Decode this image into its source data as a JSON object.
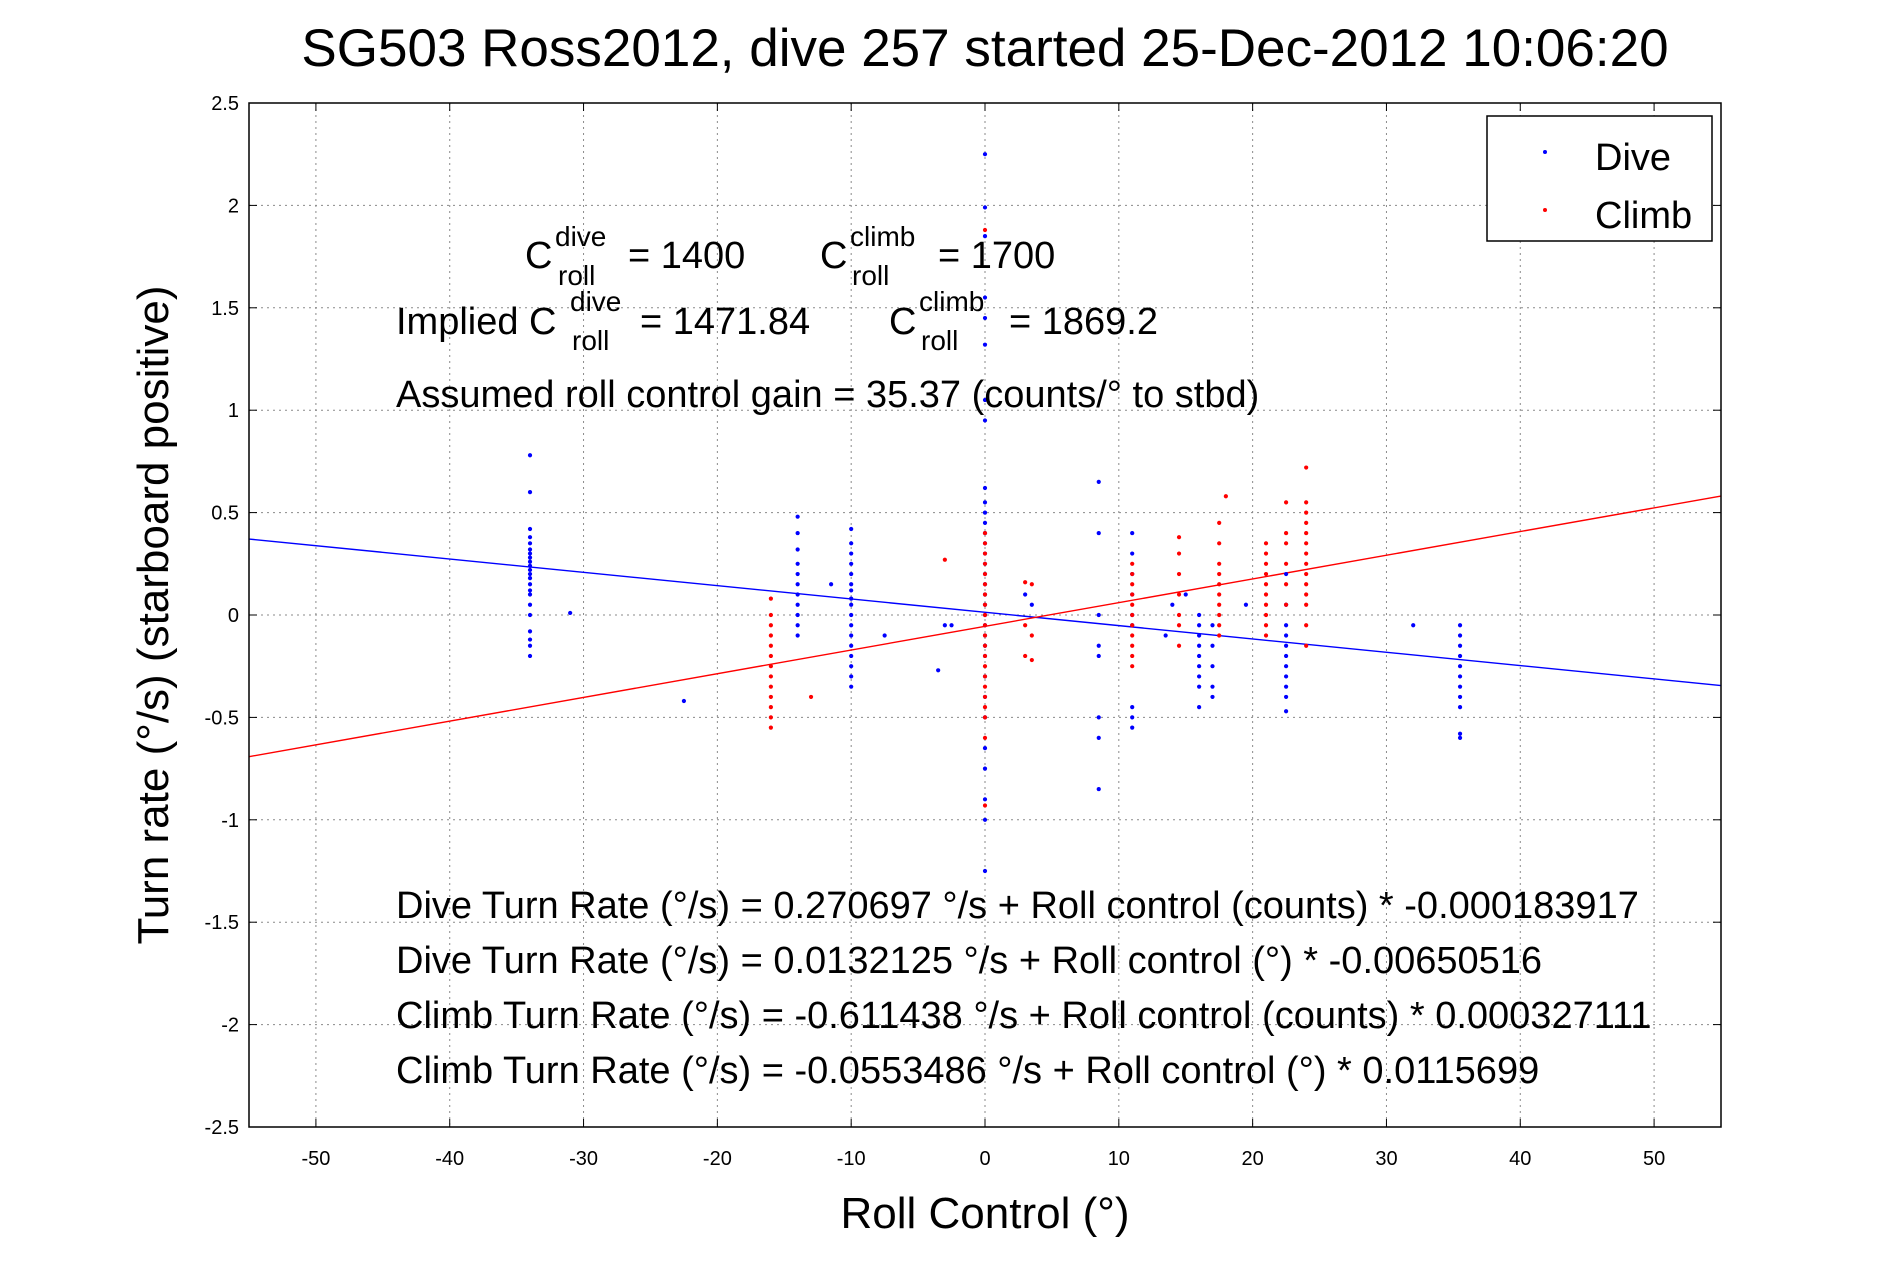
{
  "chart_data": {
    "type": "scatter",
    "title": "SG503 Ross2012, dive 257 started 25-Dec-2012 10:06:20",
    "xlabel": "Roll Control (°)",
    "ylabel": "Turn rate (°/s) (starboard positive)",
    "xlim": [
      -55,
      55
    ],
    "ylim": [
      -2.5,
      2.5
    ],
    "xticks": [
      -50,
      -40,
      -30,
      -20,
      -10,
      0,
      10,
      20,
      30,
      40,
      50
    ],
    "xtick_labels": [
      "-50",
      "-40",
      "-30",
      "-20",
      "-10",
      "0",
      "10",
      "20",
      "30",
      "40",
      "50"
    ],
    "yticks": [
      -2.5,
      -2,
      -1.5,
      -1,
      -0.5,
      0,
      0.5,
      1,
      1.5,
      2,
      2.5
    ],
    "ytick_labels": [
      "-2.5",
      "-2",
      "-1.5",
      "-1",
      "-0.5",
      "0",
      "0.5",
      "1",
      "1.5",
      "2",
      "2.5"
    ],
    "grid": true,
    "legend_position": "top-right",
    "colors": {
      "dive": "#0000ff",
      "climb": "#ff0000"
    },
    "series": [
      {
        "name": "Dive",
        "color": "#0000ff",
        "points": [
          [
            -34,
            0.78
          ],
          [
            -34,
            0.6
          ],
          [
            -34,
            0.42
          ],
          [
            -34,
            0.38
          ],
          [
            -34,
            0.35
          ],
          [
            -34,
            0.32
          ],
          [
            -34,
            0.3
          ],
          [
            -34,
            0.28
          ],
          [
            -34,
            0.26
          ],
          [
            -34,
            0.24
          ],
          [
            -34,
            0.22
          ],
          [
            -34,
            0.2
          ],
          [
            -34,
            0.18
          ],
          [
            -34,
            0.15
          ],
          [
            -34,
            0.12
          ],
          [
            -34,
            0.1
          ],
          [
            -34,
            0.05
          ],
          [
            -34,
            0.0
          ],
          [
            -34,
            -0.08
          ],
          [
            -34,
            -0.12
          ],
          [
            -34,
            -0.15
          ],
          [
            -34,
            -0.2
          ],
          [
            -31,
            0.01
          ],
          [
            -22.5,
            -0.42
          ],
          [
            -14,
            0.48
          ],
          [
            -14,
            0.4
          ],
          [
            -14,
            0.32
          ],
          [
            -14,
            0.25
          ],
          [
            -14,
            0.2
          ],
          [
            -14,
            0.15
          ],
          [
            -14,
            0.1
          ],
          [
            -14,
            0.05
          ],
          [
            -14,
            0.0
          ],
          [
            -14,
            -0.05
          ],
          [
            -14,
            -0.1
          ],
          [
            -11.5,
            0.15
          ],
          [
            -10,
            0.42
          ],
          [
            -10,
            0.35
          ],
          [
            -10,
            0.3
          ],
          [
            -10,
            0.25
          ],
          [
            -10,
            0.2
          ],
          [
            -10,
            0.15
          ],
          [
            -10,
            0.12
          ],
          [
            -10,
            0.08
          ],
          [
            -10,
            0.05
          ],
          [
            -10,
            0.0
          ],
          [
            -10,
            -0.05
          ],
          [
            -10,
            -0.1
          ],
          [
            -10,
            -0.15
          ],
          [
            -10,
            -0.2
          ],
          [
            -10,
            -0.25
          ],
          [
            -10,
            -0.3
          ],
          [
            -10,
            -0.35
          ],
          [
            -7.5,
            -0.1
          ],
          [
            -3,
            -0.05
          ],
          [
            -2.5,
            -0.05
          ],
          [
            -3.5,
            -0.27
          ],
          [
            0,
            2.25
          ],
          [
            0,
            1.99
          ],
          [
            0,
            1.85
          ],
          [
            0,
            1.55
          ],
          [
            0,
            1.45
          ],
          [
            0,
            1.32
          ],
          [
            0,
            1.05
          ],
          [
            0,
            0.95
          ],
          [
            0,
            0.62
          ],
          [
            0,
            0.55
          ],
          [
            0,
            0.5
          ],
          [
            0,
            0.45
          ],
          [
            0,
            0.4
          ],
          [
            0,
            0.35
          ],
          [
            0,
            0.3
          ],
          [
            0,
            0.25
          ],
          [
            0,
            0.2
          ],
          [
            0,
            0.15
          ],
          [
            0,
            0.1
          ],
          [
            0,
            0.05
          ],
          [
            0,
            0.0
          ],
          [
            0,
            -0.05
          ],
          [
            0,
            -0.1
          ],
          [
            0,
            -0.15
          ],
          [
            0,
            -0.2
          ],
          [
            0,
            -0.3
          ],
          [
            0,
            -0.4
          ],
          [
            0,
            -0.5
          ],
          [
            0,
            -0.65
          ],
          [
            0,
            -0.75
          ],
          [
            0,
            -0.9
          ],
          [
            0,
            -1.0
          ],
          [
            0,
            -1.25
          ],
          [
            3,
            0.1
          ],
          [
            3.5,
            0.05
          ],
          [
            8.5,
            0.65
          ],
          [
            8.5,
            0.4
          ],
          [
            8.5,
            0.0
          ],
          [
            8.5,
            -0.15
          ],
          [
            8.5,
            -0.2
          ],
          [
            8.5,
            -0.5
          ],
          [
            8.5,
            -0.6
          ],
          [
            8.5,
            -0.85
          ],
          [
            11,
            0.4
          ],
          [
            11,
            0.3
          ],
          [
            11,
            0.2
          ],
          [
            11,
            0.1
          ],
          [
            11,
            0.0
          ],
          [
            11,
            -0.05
          ],
          [
            11,
            -0.45
          ],
          [
            11,
            -0.5
          ],
          [
            11,
            -0.55
          ],
          [
            13.5,
            -0.1
          ],
          [
            14,
            0.05
          ],
          [
            15,
            0.1
          ],
          [
            16,
            0.0
          ],
          [
            16,
            -0.05
          ],
          [
            16,
            -0.1
          ],
          [
            16,
            -0.15
          ],
          [
            16,
            -0.2
          ],
          [
            16,
            -0.25
          ],
          [
            16,
            -0.3
          ],
          [
            16,
            -0.35
          ],
          [
            16,
            -0.45
          ],
          [
            17,
            -0.05
          ],
          [
            17,
            -0.15
          ],
          [
            17,
            -0.25
          ],
          [
            17,
            -0.35
          ],
          [
            17,
            -0.4
          ],
          [
            19.5,
            0.05
          ],
          [
            22.5,
            0.2
          ],
          [
            22.5,
            0.05
          ],
          [
            22.5,
            -0.05
          ],
          [
            22.5,
            -0.1
          ],
          [
            22.5,
            -0.15
          ],
          [
            22.5,
            -0.2
          ],
          [
            22.5,
            -0.25
          ],
          [
            22.5,
            -0.3
          ],
          [
            22.5,
            -0.35
          ],
          [
            22.5,
            -0.4
          ],
          [
            22.5,
            -0.47
          ],
          [
            32,
            -0.05
          ],
          [
            35.5,
            -0.05
          ],
          [
            35.5,
            -0.1
          ],
          [
            35.5,
            -0.15
          ],
          [
            35.5,
            -0.2
          ],
          [
            35.5,
            -0.25
          ],
          [
            35.5,
            -0.3
          ],
          [
            35.5,
            -0.35
          ],
          [
            35.5,
            -0.4
          ],
          [
            35.5,
            -0.45
          ],
          [
            35.5,
            -0.58
          ],
          [
            35.5,
            -0.6
          ]
        ]
      },
      {
        "name": "Climb",
        "color": "#ff0000",
        "points": [
          [
            -16,
            0.08
          ],
          [
            -16,
            0.0
          ],
          [
            -16,
            -0.05
          ],
          [
            -16,
            -0.1
          ],
          [
            -16,
            -0.15
          ],
          [
            -16,
            -0.2
          ],
          [
            -16,
            -0.25
          ],
          [
            -16,
            -0.3
          ],
          [
            -16,
            -0.35
          ],
          [
            -16,
            -0.4
          ],
          [
            -16,
            -0.45
          ],
          [
            -16,
            -0.5
          ],
          [
            -16,
            -0.55
          ],
          [
            -13,
            -0.4
          ],
          [
            -3,
            0.27
          ],
          [
            0,
            1.88
          ],
          [
            0,
            0.4
          ],
          [
            0,
            0.35
          ],
          [
            0,
            0.3
          ],
          [
            0,
            0.25
          ],
          [
            0,
            0.2
          ],
          [
            0,
            0.15
          ],
          [
            0,
            0.1
          ],
          [
            0,
            0.05
          ],
          [
            0,
            0.0
          ],
          [
            0,
            -0.05
          ],
          [
            0,
            -0.1
          ],
          [
            0,
            -0.15
          ],
          [
            0,
            -0.2
          ],
          [
            0,
            -0.25
          ],
          [
            0,
            -0.3
          ],
          [
            0,
            -0.35
          ],
          [
            0,
            -0.4
          ],
          [
            0,
            -0.45
          ],
          [
            0,
            -0.5
          ],
          [
            0,
            -0.6
          ],
          [
            0,
            -0.93
          ],
          [
            3,
            0.16
          ],
          [
            3,
            -0.05
          ],
          [
            3,
            -0.2
          ],
          [
            3.5,
            0.15
          ],
          [
            3.5,
            -0.1
          ],
          [
            3.5,
            -0.22
          ],
          [
            11,
            0.25
          ],
          [
            11,
            0.2
          ],
          [
            11,
            0.15
          ],
          [
            11,
            0.1
          ],
          [
            11,
            0.05
          ],
          [
            11,
            0.0
          ],
          [
            11,
            -0.05
          ],
          [
            11,
            -0.1
          ],
          [
            11,
            -0.15
          ],
          [
            11,
            -0.2
          ],
          [
            11,
            -0.25
          ],
          [
            14.5,
            0.38
          ],
          [
            14.5,
            0.3
          ],
          [
            14.5,
            0.2
          ],
          [
            14.5,
            0.1
          ],
          [
            14.5,
            0.0
          ],
          [
            14.5,
            -0.05
          ],
          [
            14.5,
            -0.15
          ],
          [
            17.5,
            0.45
          ],
          [
            17.5,
            0.35
          ],
          [
            17.5,
            0.25
          ],
          [
            17.5,
            0.2
          ],
          [
            17.5,
            0.15
          ],
          [
            17.5,
            0.1
          ],
          [
            17.5,
            0.05
          ],
          [
            17.5,
            0.0
          ],
          [
            17.5,
            -0.05
          ],
          [
            17.5,
            -0.1
          ],
          [
            21,
            0.35
          ],
          [
            21,
            0.3
          ],
          [
            21,
            0.25
          ],
          [
            21,
            0.2
          ],
          [
            21,
            0.15
          ],
          [
            21,
            0.1
          ],
          [
            21,
            0.05
          ],
          [
            21,
            0.0
          ],
          [
            21,
            -0.05
          ],
          [
            21,
            -0.1
          ],
          [
            22.5,
            0.55
          ],
          [
            22.5,
            0.4
          ],
          [
            22.5,
            0.35
          ],
          [
            22.5,
            0.25
          ],
          [
            22.5,
            0.15
          ],
          [
            22.5,
            0.05
          ],
          [
            24,
            0.72
          ],
          [
            24,
            0.55
          ],
          [
            24,
            0.5
          ],
          [
            24,
            0.45
          ],
          [
            24,
            0.4
          ],
          [
            24,
            0.35
          ],
          [
            24,
            0.3
          ],
          [
            24,
            0.25
          ],
          [
            24,
            0.2
          ],
          [
            24,
            0.15
          ],
          [
            24,
            0.1
          ],
          [
            24,
            0.05
          ],
          [
            24,
            -0.05
          ],
          [
            24,
            -0.15
          ],
          [
            18,
            0.58
          ]
        ]
      }
    ],
    "fit_lines": [
      {
        "series": "Dive",
        "color": "#0000ff",
        "intercept": 0.0132125,
        "slope": -0.00650516
      },
      {
        "series": "Climb",
        "color": "#ff0000",
        "intercept": -0.0553486,
        "slope": 0.0115699
      }
    ],
    "legend": [
      {
        "label": "Dive",
        "color": "#0000ff"
      },
      {
        "label": "Climb",
        "color": "#ff0000"
      }
    ],
    "annotations": {
      "c_roll_dive_value": "= 1400",
      "c_roll_climb_value": "= 1700",
      "implied_prefix": "Implied C",
      "implied_dive_value": "= 1471.84",
      "implied_climb_value": "= 1869.2",
      "c_letter": "C",
      "sup_dive": "dive",
      "sup_climb": "climb",
      "sub_roll": "roll",
      "gain": "Assumed roll control gain = 35.37 (counts/° to stbd)",
      "eq1": "Dive Turn Rate (°/s) = 0.270697 °/s + Roll control (counts) * -0.000183917",
      "eq2": "Dive Turn Rate (°/s) = 0.0132125 °/s + Roll control (°) * -0.00650516",
      "eq3": "Climb Turn Rate (°/s) = -0.611438 °/s + Roll control (counts) * 0.000327111",
      "eq4": "Climb Turn Rate (°/s) = -0.0553486 °/s + Roll control (°) * 0.0115699"
    }
  }
}
